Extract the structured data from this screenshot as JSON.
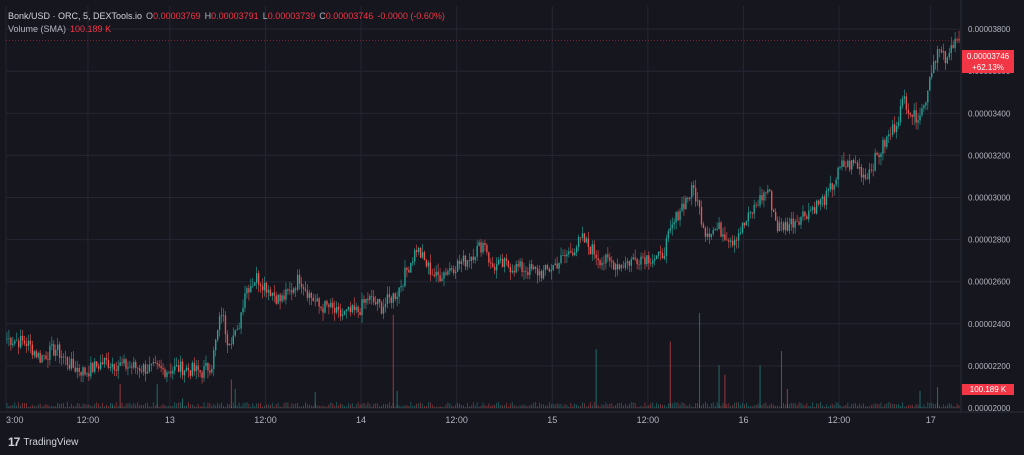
{
  "legend": {
    "symbol": "Bonk/USD · ORC, 5, DEXTools.io",
    "o_key": "O",
    "o_val": "0.00003769",
    "h_key": "H",
    "h_val": "0.00003791",
    "l_key": "L",
    "l_val": "0.00003739",
    "c_key": "C",
    "c_val": "0.00003746",
    "change": "-0.0000 (-0.60%)",
    "volume_label": "Volume (SMA)",
    "volume_val": "100.189 K"
  },
  "price_tag": {
    "price": "0.00003746",
    "change": "+62.13%"
  },
  "volume_tag": "100.189 K",
  "branding": "TradingView",
  "colors": {
    "up": "#26a69a",
    "down": "#ef5350",
    "line": "#f23645",
    "grid": "#262633",
    "bg": "#16161f"
  },
  "chart_data": {
    "type": "candlestick",
    "title": "Bonk/USD · ORC, 5, DEXTools.io",
    "x_tick_labels": [
      "3:00",
      "12:00",
      "13",
      "12:00",
      "14",
      "12:00",
      "15",
      "12:00",
      "16",
      "12:00",
      "17"
    ],
    "y_tick_labels": [
      "0.00003800",
      "0.00003600",
      "0.00003400",
      "0.00003200",
      "0.00003000",
      "0.00002800",
      "0.00002600",
      "0.00002400",
      "0.00002200",
      "0.00002000"
    ],
    "ylim": [
      2e-05,
      3.91e-05
    ],
    "grid": true,
    "current_price": 3.746e-05,
    "price_path": [
      [
        0,
        2.33e-05
      ],
      [
        10,
        2.31e-05
      ],
      [
        17,
        2.24e-05
      ],
      [
        25,
        2.28e-05
      ],
      [
        33,
        2.2e-05
      ],
      [
        40,
        2.17e-05
      ],
      [
        50,
        2.22e-05
      ],
      [
        60,
        2.2e-05
      ],
      [
        70,
        2.19e-05
      ],
      [
        80,
        2.18e-05
      ],
      [
        90,
        2.19e-05
      ],
      [
        100,
        2.17e-05
      ],
      [
        105,
        2.21e-05
      ],
      [
        110,
        2.46e-05
      ],
      [
        113,
        2.33e-05
      ],
      [
        118,
        2.35e-05
      ],
      [
        122,
        2.56e-05
      ],
      [
        128,
        2.62e-05
      ],
      [
        135,
        2.56e-05
      ],
      [
        140,
        2.51e-05
      ],
      [
        145,
        2.55e-05
      ],
      [
        150,
        2.62e-05
      ],
      [
        155,
        2.54e-05
      ],
      [
        160,
        2.48e-05
      ],
      [
        165,
        2.48e-05
      ],
      [
        170,
        2.44e-05
      ],
      [
        180,
        2.46e-05
      ],
      [
        185,
        2.52e-05
      ],
      [
        192,
        2.48e-05
      ],
      [
        200,
        2.55e-05
      ],
      [
        210,
        2.76e-05
      ],
      [
        215,
        2.68e-05
      ],
      [
        220,
        2.62e-05
      ],
      [
        228,
        2.67e-05
      ],
      [
        235,
        2.7e-05
      ],
      [
        245,
        2.79e-05
      ],
      [
        248,
        2.67e-05
      ],
      [
        255,
        2.68e-05
      ],
      [
        265,
        2.66e-05
      ],
      [
        275,
        2.64e-05
      ],
      [
        285,
        2.71e-05
      ],
      [
        295,
        2.8e-05
      ],
      [
        305,
        2.7e-05
      ],
      [
        315,
        2.68e-05
      ],
      [
        325,
        2.72e-05
      ],
      [
        335,
        2.71e-05
      ],
      [
        345,
        2.95e-05
      ],
      [
        352,
        3.04e-05
      ],
      [
        358,
        2.84e-05
      ],
      [
        365,
        2.85e-05
      ],
      [
        372,
        2.8e-05
      ],
      [
        378,
        2.87e-05
      ],
      [
        385,
        2.98e-05
      ],
      [
        390,
        3.04e-05
      ],
      [
        395,
        2.86e-05
      ],
      [
        400,
        2.87e-05
      ],
      [
        410,
        2.93e-05
      ],
      [
        420,
        3e-05
      ],
      [
        428,
        3.15e-05
      ],
      [
        435,
        3.16e-05
      ],
      [
        440,
        3.1e-05
      ],
      [
        447,
        3.21e-05
      ],
      [
        455,
        3.34e-05
      ],
      [
        460,
        3.47e-05
      ],
      [
        465,
        3.38e-05
      ],
      [
        470,
        3.43e-05
      ],
      [
        474,
        3.62e-05
      ],
      [
        477,
        3.7e-05
      ],
      [
        482,
        3.64e-05
      ],
      [
        486,
        3.78e-05
      ],
      [
        488,
        3.75e-05
      ]
    ],
    "volume_spikes": [
      [
        54,
        0.02
      ],
      [
        58,
        0.25
      ],
      [
        77,
        0.25
      ],
      [
        90,
        0.1
      ],
      [
        115,
        0.3
      ],
      [
        117,
        0.2
      ],
      [
        158,
        0.17
      ],
      [
        198,
        0.98
      ],
      [
        200,
        0.18
      ],
      [
        302,
        0.62
      ],
      [
        340,
        0.7
      ],
      [
        355,
        1.0
      ],
      [
        365,
        0.45
      ],
      [
        368,
        0.35
      ],
      [
        386,
        0.45
      ],
      [
        397,
        0.6
      ],
      [
        400,
        0.2
      ],
      [
        468,
        0.18
      ],
      [
        477,
        0.22
      ]
    ]
  }
}
